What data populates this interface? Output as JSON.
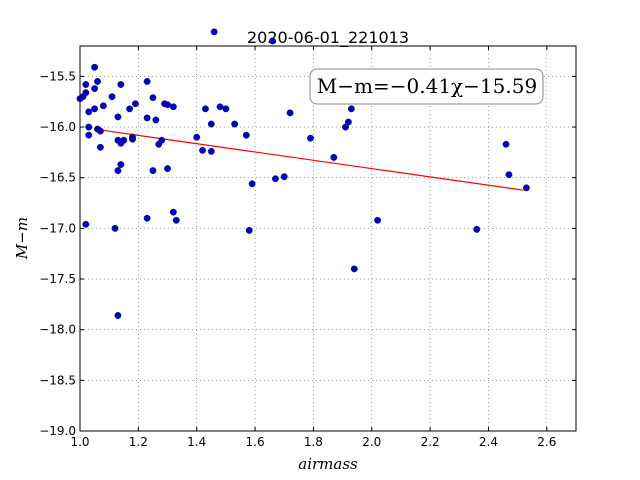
{
  "chart_data": {
    "type": "scatter",
    "title": "2020-06-01_221013",
    "xlabel": "airmass",
    "ylabel": "M−m",
    "xlim": [
      1.0,
      2.7
    ],
    "ylim": [
      -19.0,
      -15.2
    ],
    "xticks": [
      "1.0",
      "1.2",
      "1.4",
      "1.6",
      "1.8",
      "2.0",
      "2.2",
      "2.4",
      "2.6"
    ],
    "yticks": [
      "−15.5",
      "−16.0",
      "−16.5",
      "−17.0",
      "−17.5",
      "−18.0",
      "−18.5",
      "−19.0"
    ],
    "grid": true,
    "annotation": "M−m=−0.41χ−15.59",
    "fit": {
      "slope": -0.41,
      "intercept": -15.59,
      "x_range": [
        1.07,
        2.52
      ],
      "color": "#ff0000"
    },
    "series": [
      {
        "color": "#0000cc",
        "points": [
          [
            1.0,
            -15.72
          ],
          [
            1.01,
            -15.7
          ],
          [
            1.02,
            -15.58
          ],
          [
            1.02,
            -15.66
          ],
          [
            1.03,
            -15.85
          ],
          [
            1.03,
            -16.0
          ],
          [
            1.03,
            -16.08
          ],
          [
            1.02,
            -16.96
          ],
          [
            1.05,
            -15.41
          ],
          [
            1.05,
            -15.62
          ],
          [
            1.06,
            -15.55
          ],
          [
            1.05,
            -15.82
          ],
          [
            1.06,
            -16.02
          ],
          [
            1.07,
            -16.04
          ],
          [
            1.07,
            -16.2
          ],
          [
            1.08,
            -15.79
          ],
          [
            1.11,
            -15.7
          ],
          [
            1.12,
            -17.0
          ],
          [
            1.13,
            -15.9
          ],
          [
            1.13,
            -16.13
          ],
          [
            1.14,
            -16.16
          ],
          [
            1.14,
            -15.58
          ],
          [
            1.15,
            -16.13
          ],
          [
            1.14,
            -16.37
          ],
          [
            1.13,
            -16.43
          ],
          [
            1.13,
            -17.86
          ],
          [
            1.17,
            -15.82
          ],
          [
            1.18,
            -16.1
          ],
          [
            1.18,
            -16.12
          ],
          [
            1.19,
            -15.77
          ],
          [
            1.23,
            -15.55
          ],
          [
            1.23,
            -15.91
          ],
          [
            1.23,
            -16.9
          ],
          [
            1.25,
            -15.71
          ],
          [
            1.25,
            -16.43
          ],
          [
            1.26,
            -15.93
          ],
          [
            1.27,
            -16.17
          ],
          [
            1.28,
            -16.13
          ],
          [
            1.29,
            -15.77
          ],
          [
            1.3,
            -15.78
          ],
          [
            1.3,
            -16.41
          ],
          [
            1.32,
            -15.8
          ],
          [
            1.32,
            -16.84
          ],
          [
            1.33,
            -16.92
          ],
          [
            1.4,
            -16.1
          ],
          [
            1.42,
            -16.23
          ],
          [
            1.43,
            -15.82
          ],
          [
            1.45,
            -15.97
          ],
          [
            1.45,
            -16.24
          ],
          [
            1.46,
            -15.06
          ],
          [
            1.48,
            -15.8
          ],
          [
            1.5,
            -15.82
          ],
          [
            1.53,
            -15.97
          ],
          [
            1.57,
            -16.08
          ],
          [
            1.58,
            -17.02
          ],
          [
            1.59,
            -16.56
          ],
          [
            1.66,
            -15.15
          ],
          [
            1.67,
            -16.51
          ],
          [
            1.7,
            -16.49
          ],
          [
            1.72,
            -15.86
          ],
          [
            1.79,
            -16.11
          ],
          [
            1.87,
            -16.3
          ],
          [
            1.91,
            -16.0
          ],
          [
            1.92,
            -15.95
          ],
          [
            1.93,
            -15.82
          ],
          [
            1.94,
            -17.4
          ],
          [
            2.02,
            -16.92
          ],
          [
            2.36,
            -17.01
          ],
          [
            2.46,
            -16.17
          ],
          [
            2.47,
            -16.47
          ],
          [
            2.53,
            -16.6
          ]
        ]
      }
    ]
  }
}
